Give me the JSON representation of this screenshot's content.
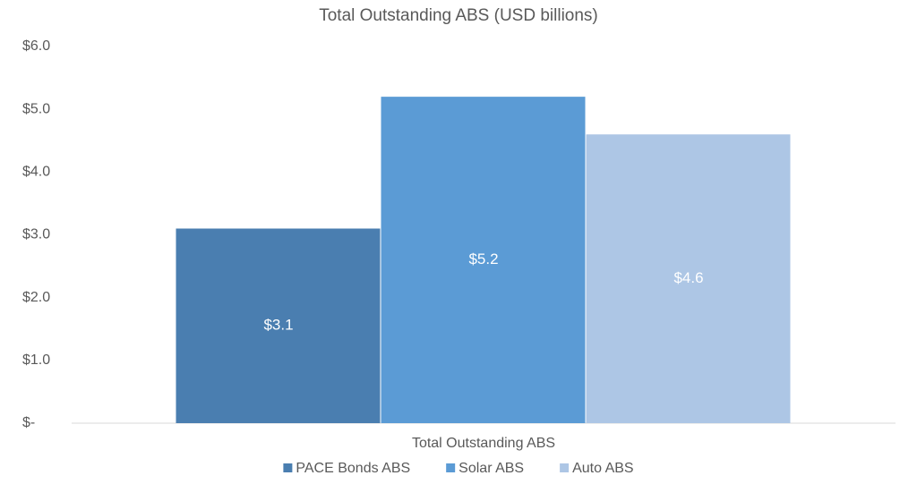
{
  "chart_data": {
    "type": "bar",
    "title": "Total Outstanding ABS (USD billions)",
    "categories": [
      "Total Outstanding ABS"
    ],
    "series": [
      {
        "name": "PACE Bonds ABS",
        "color": "#4a7eb0",
        "values": [
          3.1
        ],
        "value_labels": [
          "$3.1"
        ]
      },
      {
        "name": "Solar ABS",
        "color": "#5b9bd5",
        "values": [
          5.2
        ],
        "value_labels": [
          "$5.2"
        ]
      },
      {
        "name": "Auto ABS",
        "color": "#adc6e5",
        "values": [
          4.6
        ],
        "value_labels": [
          "$4.6"
        ]
      }
    ],
    "ylim": [
      0,
      6
    ],
    "yticks": [
      {
        "value": 0,
        "label": "$-"
      },
      {
        "value": 1,
        "label": "$1.0"
      },
      {
        "value": 2,
        "label": "$2.0"
      },
      {
        "value": 3,
        "label": "$3.0"
      },
      {
        "value": 4,
        "label": "$4.0"
      },
      {
        "value": 5,
        "label": "$5.0"
      },
      {
        "value": 6,
        "label": "$6.0"
      }
    ],
    "grid": false,
    "legend": "bottom"
  }
}
